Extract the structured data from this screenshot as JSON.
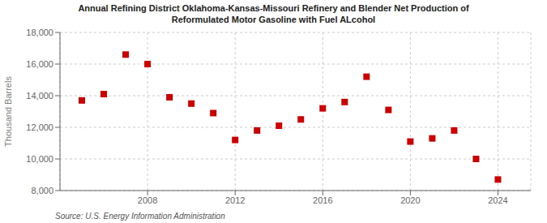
{
  "chart_data": {
    "type": "scatter",
    "title": "Annual Refining District Oklahoma-Kansas-Missouri Refinery and Blender Net Production of\nReformulated Motor Gasoline with Fuel ALcohol",
    "y_label": "Thousand Barrels",
    "annotations": [
      "Source: U.S. Energy Information Administration"
    ],
    "x": [
      2005,
      2006,
      2007,
      2008,
      2009,
      2010,
      2011,
      2012,
      2013,
      2014,
      2015,
      2016,
      2017,
      2018,
      2019,
      2020,
      2021,
      2022,
      2023,
      2024
    ],
    "values": [
      13700,
      14100,
      16600,
      16000,
      13900,
      13500,
      12900,
      11200,
      11800,
      12100,
      12500,
      13200,
      13600,
      15200,
      13100,
      11100,
      11300,
      11800,
      10000,
      8700
    ],
    "color": "#cc0000",
    "marker": "square",
    "xlim": [
      2004.0,
      2025.5
    ],
    "xticks": [
      2008,
      2012,
      2016,
      2020,
      2024
    ],
    "ylim": [
      8000,
      18000
    ],
    "yticks": [
      {
        "value": 8000,
        "label": "8,000"
      },
      {
        "value": 10000,
        "label": "10,000"
      },
      {
        "value": 12000,
        "label": "12,000"
      },
      {
        "value": 14000,
        "label": "14,000"
      },
      {
        "value": 16000,
        "label": "16,000"
      },
      {
        "value": 18000,
        "label": "18,000"
      }
    ],
    "grid": true
  }
}
